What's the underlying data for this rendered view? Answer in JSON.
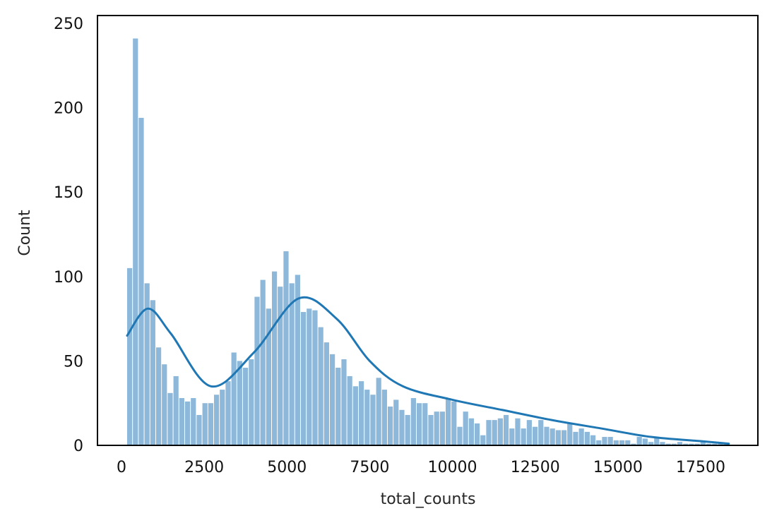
{
  "chart_data": {
    "type": "bar",
    "subtype": "histogram_with_kde",
    "title": "",
    "xlabel": "total_counts",
    "ylabel": "Count",
    "xlim": [
      -700,
      19250
    ],
    "ylim": [
      0,
      250
    ],
    "xticks": [
      0,
      2500,
      5000,
      7500,
      10000,
      12500,
      15000,
      17500
    ],
    "xtick_labels": [
      "0",
      "2500",
      "5000",
      "7500",
      "10000",
      "12500",
      "15000",
      "17500"
    ],
    "yticks": [
      0,
      50,
      100,
      150,
      200,
      250
    ],
    "ytick_labels": [
      "0",
      "50",
      "100",
      "150",
      "200",
      "250"
    ],
    "grid": false,
    "legend": null,
    "bar_color": "#8db8d9",
    "kde_color": "#1f77b4",
    "bin_start": 170,
    "bin_width": 175,
    "values": [
      105,
      241,
      194,
      96,
      86,
      58,
      48,
      31,
      41,
      28,
      26,
      28,
      18,
      25,
      25,
      30,
      33,
      38,
      55,
      50,
      46,
      51,
      88,
      98,
      81,
      103,
      94,
      115,
      96,
      101,
      79,
      81,
      80,
      70,
      61,
      54,
      46,
      51,
      41,
      35,
      38,
      33,
      30,
      40,
      33,
      23,
      27,
      21,
      18,
      28,
      25,
      25,
      18,
      20,
      20,
      28,
      26,
      11,
      20,
      16,
      13,
      6,
      15,
      15,
      16,
      18,
      10,
      16,
      10,
      15,
      11,
      15,
      11,
      10,
      9,
      9,
      13,
      8,
      10,
      8,
      6,
      3,
      5,
      5,
      3,
      3,
      3,
      1,
      5,
      4,
      2,
      5,
      2,
      1,
      1,
      2,
      1,
      1,
      1,
      2,
      1,
      1,
      1,
      1
    ],
    "kde": {
      "x": [
        170,
        800,
        1500,
        2700,
        4000,
        5350,
        6500,
        7500,
        8500,
        10000,
        11500,
        13000,
        14500,
        16000,
        17500,
        18350
      ],
      "y": [
        65,
        81,
        66,
        35,
        55,
        87,
        75,
        50,
        35,
        27,
        21,
        15,
        10,
        5,
        2.5,
        1
      ]
    }
  }
}
